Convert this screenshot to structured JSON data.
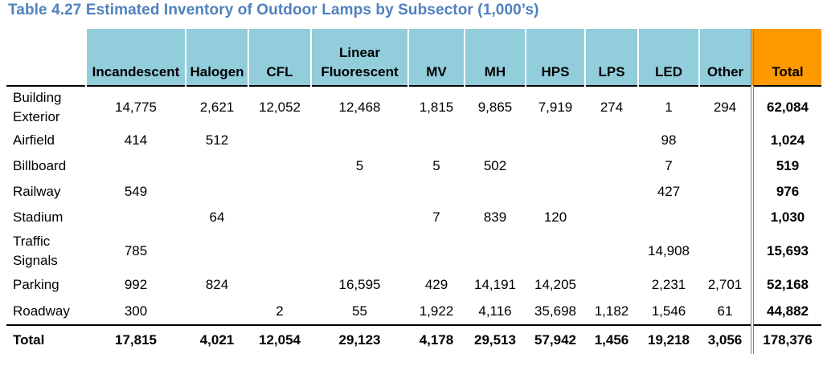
{
  "title": "Table 4.27 Estimated Inventory of Outdoor Lamps by Subsector (1,000’s)",
  "headers": [
    "Incandescent",
    "Halogen",
    "CFL",
    "Linear Fluorescent",
    "MV",
    "MH",
    "HPS",
    "LPS",
    "LED",
    "Other",
    "Total"
  ],
  "rows": [
    {
      "label": "Building Exterior",
      "values": [
        "14,775",
        "2,621",
        "12,052",
        "12,468",
        "1,815",
        "9,865",
        "7,919",
        "274",
        "1",
        "294",
        "62,084"
      ]
    },
    {
      "label": "Airfield",
      "values": [
        "414",
        "512",
        "",
        "",
        "",
        "",
        "",
        "",
        "98",
        "",
        "1,024"
      ]
    },
    {
      "label": "Billboard",
      "values": [
        "",
        "",
        "",
        "5",
        "5",
        "502",
        "",
        "",
        "7",
        "",
        "519"
      ]
    },
    {
      "label": "Railway",
      "values": [
        "549",
        "",
        "",
        "",
        "",
        "",
        "",
        "",
        "427",
        "",
        "976"
      ]
    },
    {
      "label": "Stadium",
      "values": [
        "",
        "64",
        "",
        "",
        "7",
        "839",
        "120",
        "",
        "",
        "",
        "1,030"
      ]
    },
    {
      "label": "Traffic Signals",
      "values": [
        "785",
        "",
        "",
        "",
        "",
        "",
        "",
        "",
        "14,908",
        "",
        "15,693"
      ]
    },
    {
      "label": "Parking",
      "values": [
        "992",
        "824",
        "",
        "16,595",
        "429",
        "14,191",
        "14,205",
        "",
        "2,231",
        "2,701",
        "52,168"
      ]
    },
    {
      "label": "Roadway",
      "values": [
        "300",
        "",
        "2",
        "55",
        "1,922",
        "4,116",
        "35,698",
        "1,182",
        "1,546",
        "61",
        "44,882"
      ]
    }
  ],
  "total": {
    "label": "Total",
    "values": [
      "17,815",
      "4,021",
      "12,054",
      "29,123",
      "4,178",
      "29,513",
      "57,942",
      "1,456",
      "19,218",
      "3,056",
      "178,376"
    ]
  }
}
